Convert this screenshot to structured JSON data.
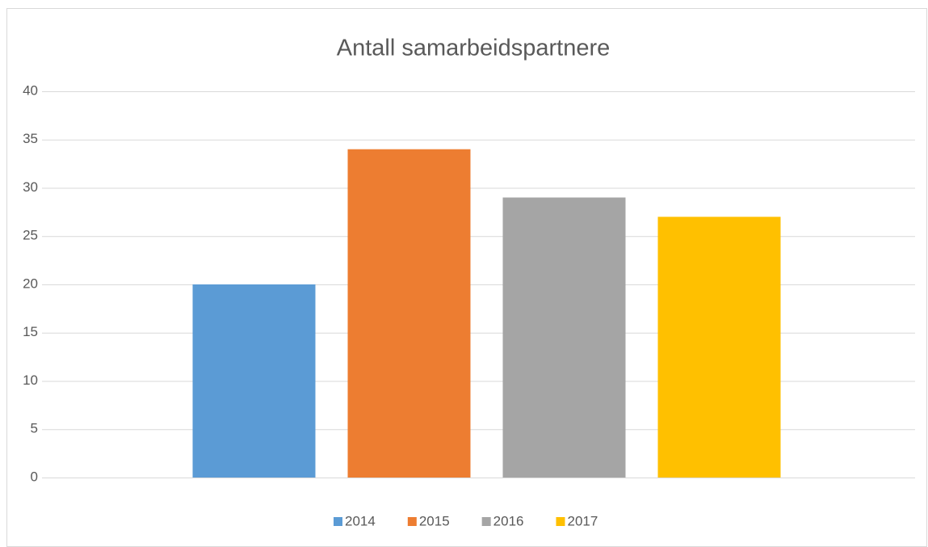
{
  "chart_data": {
    "type": "bar",
    "title": "Antall samarbeidspartnere",
    "categories": [
      null
    ],
    "series": [
      {
        "name": "2014",
        "color": "#5b9bd5",
        "values": [
          20
        ]
      },
      {
        "name": "2015",
        "color": "#ed7d31",
        "values": [
          34
        ]
      },
      {
        "name": "2016",
        "color": "#a5a5a5",
        "values": [
          29
        ]
      },
      {
        "name": "2017",
        "color": "#ffc000",
        "values": [
          27
        ]
      }
    ],
    "ylim": [
      0,
      40
    ],
    "yticks": [
      0,
      5,
      10,
      15,
      20,
      25,
      30,
      35,
      40
    ],
    "grid": true,
    "legend": "bottom"
  }
}
